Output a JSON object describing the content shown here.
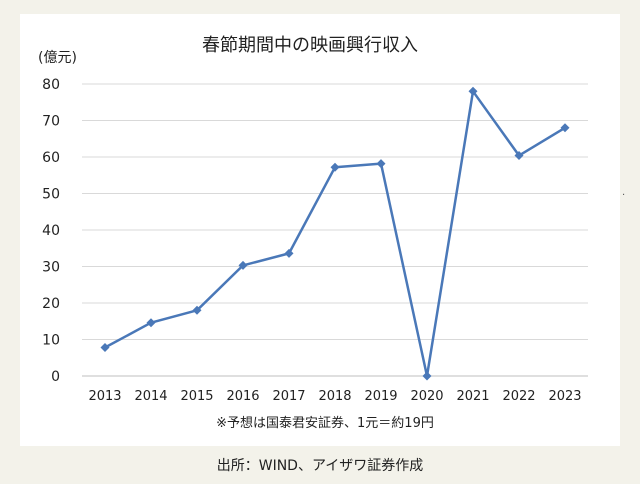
{
  "chart_data": {
    "type": "line",
    "title": "春節期間中の映画興行収入",
    "ylabel": "(億元)",
    "xlabel": "",
    "ylim": [
      0,
      80
    ],
    "yticks": [
      0,
      10,
      20,
      30,
      40,
      50,
      60,
      70,
      80
    ],
    "grid": true,
    "legend": "none",
    "categories": [
      "2013",
      "2014",
      "2015",
      "2016",
      "2017",
      "2018",
      "2019",
      "2020",
      "2021",
      "2022",
      "2023"
    ],
    "series": [
      {
        "values": [
          7.8,
          14.6,
          18.0,
          30.3,
          33.6,
          57.2,
          58.2,
          0,
          78.0,
          60.4,
          68.0
        ],
        "color": "#4a78b8"
      }
    ],
    "note": "※予想は国泰君安証券、1元＝約19円"
  },
  "source": "出所：WIND、アイザワ証券作成"
}
